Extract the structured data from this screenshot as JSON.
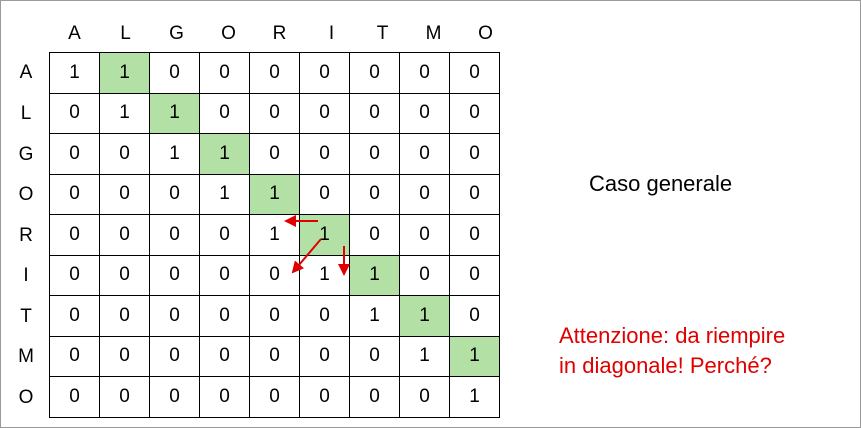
{
  "columns": [
    "A",
    "L",
    "G",
    "O",
    "R",
    "I",
    "T",
    "M",
    "O"
  ],
  "rows": [
    {
      "label": "A",
      "values": [
        "1",
        "1",
        "0",
        "0",
        "0",
        "0",
        "0",
        "0",
        "0"
      ]
    },
    {
      "label": "L",
      "values": [
        "0",
        "1",
        "1",
        "0",
        "0",
        "0",
        "0",
        "0",
        "0"
      ]
    },
    {
      "label": "G",
      "values": [
        "0",
        "0",
        "1",
        "1",
        "0",
        "0",
        "0",
        "0",
        "0"
      ]
    },
    {
      "label": "O",
      "values": [
        "0",
        "0",
        "0",
        "1",
        "1",
        "0",
        "0",
        "0",
        "0"
      ]
    },
    {
      "label": "R",
      "values": [
        "0",
        "0",
        "0",
        "0",
        "1",
        "1",
        "0",
        "0",
        "0"
      ]
    },
    {
      "label": "I",
      "values": [
        "0",
        "0",
        "0",
        "0",
        "0",
        "1",
        "1",
        "0",
        "0"
      ]
    },
    {
      "label": "T",
      "values": [
        "0",
        "0",
        "0",
        "0",
        "0",
        "0",
        "1",
        "1",
        "0"
      ]
    },
    {
      "label": "M",
      "values": [
        "0",
        "0",
        "0",
        "0",
        "0",
        "0",
        "0",
        "1",
        "1"
      ]
    },
    {
      "label": "O",
      "values": [
        "0",
        "0",
        "0",
        "0",
        "0",
        "0",
        "0",
        "0",
        "1"
      ]
    }
  ],
  "highlight_color": "#b3e0a5",
  "arrow_color": "#e00000",
  "caption": "Caso generale",
  "note_line1": "Attenzione: da riempire",
  "note_line2": "in diagonale! Perché?",
  "note_color": "#e00000"
}
